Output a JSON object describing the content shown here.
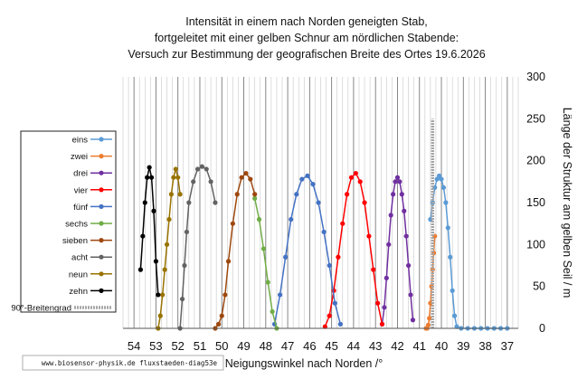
{
  "chart_data": {
    "type": "scatter",
    "title_lines": [
      "Intensität in einem nach Norden geneigten Stab,",
      "fortgeleitet mit einer gelben Schnur am nördlichen Stabende:",
      "Versuch zur Bestimmung der geografischen Breite des Ortes 19.6.2026"
    ],
    "xlabel": "Neigungswinkel nach Norden  /°",
    "ylabel": "Länge der Struktur am gelben Seil / m",
    "xlim": [
      36.5,
      54.5
    ],
    "x_reversed": true,
    "ylim": [
      0,
      300
    ],
    "x_ticks": [
      37,
      38,
      39,
      40,
      41,
      42,
      43,
      44,
      45,
      46,
      47,
      48,
      49,
      50,
      51,
      52,
      53,
      54
    ],
    "y_ticks": [
      0,
      50,
      100,
      150,
      200,
      250,
      300
    ],
    "grid": "vertical-minor",
    "legend_position": "left",
    "source_note": "www.biosensor-physik.de  fluxstaeden-diag53e",
    "series": [
      {
        "name": "eins",
        "color": "#5b9bd5",
        "marker": "circle",
        "line": true,
        "x": [
          37.0,
          37.3,
          37.6,
          37.9,
          38.2,
          38.5,
          38.8,
          39.1,
          39.3,
          39.4,
          39.5,
          39.6,
          39.7,
          39.8,
          39.9,
          40.0,
          40.1,
          40.2,
          40.3,
          40.4,
          40.5
        ],
        "y": [
          0,
          0,
          0,
          0,
          0,
          0,
          0,
          0,
          2,
          15,
          45,
          85,
          120,
          150,
          168,
          178,
          182,
          178,
          168,
          150,
          130
        ]
      },
      {
        "name": "zwei",
        "color": "#ed7d31",
        "marker": "circle",
        "line": true,
        "x": [
          40.3,
          40.35,
          40.4,
          40.45,
          40.5,
          40.55,
          40.6,
          40.65,
          40.7
        ],
        "y": [
          110,
          90,
          70,
          50,
          30,
          12,
          4,
          0,
          0
        ]
      },
      {
        "name": "drei",
        "color": "#7030a0",
        "marker": "circle",
        "line": true,
        "x": [
          41.3,
          41.4,
          41.5,
          41.6,
          41.7,
          41.8,
          41.9,
          42.0,
          42.1,
          42.2,
          42.3,
          42.4,
          42.5,
          42.6,
          42.7
        ],
        "y": [
          10,
          40,
          75,
          110,
          140,
          160,
          175,
          180,
          175,
          160,
          135,
          100,
          60,
          25,
          5
        ]
      },
      {
        "name": "vier",
        "color": "#ff0000",
        "marker": "circle",
        "line": true,
        "x": [
          42.7,
          42.9,
          43.1,
          43.3,
          43.5,
          43.7,
          43.9,
          44.1,
          44.3,
          44.5,
          44.7,
          44.9,
          45.1,
          45.3
        ],
        "y": [
          5,
          30,
          70,
          110,
          150,
          175,
          185,
          180,
          160,
          125,
          85,
          45,
          15,
          2
        ]
      },
      {
        "name": "fünf",
        "color": "#4472c4",
        "marker": "circle",
        "line": true,
        "x": [
          44.6,
          44.85,
          45.1,
          45.35,
          45.6,
          45.85,
          46.1,
          46.35,
          46.6,
          46.85,
          47.1,
          47.35,
          47.6
        ],
        "y": [
          5,
          30,
          75,
          115,
          150,
          172,
          182,
          178,
          160,
          130,
          85,
          40,
          5
        ]
      },
      {
        "name": "sechs",
        "color": "#70ad47",
        "marker": "circle",
        "line": true,
        "x": [
          47.5,
          47.7,
          47.9,
          48.1,
          48.3,
          48.5
        ],
        "y": [
          0,
          20,
          55,
          95,
          130,
          155
        ]
      },
      {
        "name": "sieben",
        "color": "#9e480e",
        "marker": "circle",
        "line": true,
        "x": [
          48.5,
          48.7,
          48.9,
          49.1,
          49.3,
          49.5,
          49.7,
          49.85,
          50.0,
          50.15,
          50.3
        ],
        "y": [
          160,
          178,
          185,
          180,
          160,
          125,
          80,
          40,
          15,
          5,
          0
        ]
      },
      {
        "name": "acht",
        "color": "#636363",
        "marker": "circle",
        "line": true,
        "x": [
          50.3,
          50.5,
          50.7,
          50.9,
          51.1,
          51.3,
          51.5,
          51.6,
          51.7,
          51.8,
          51.9
        ],
        "y": [
          150,
          175,
          190,
          193,
          190,
          175,
          150,
          115,
          75,
          35,
          0
        ]
      },
      {
        "name": "neun",
        "color": "#997300",
        "marker": "circle",
        "line": true,
        "x": [
          51.9,
          52.0,
          52.1,
          52.2,
          52.3,
          52.4,
          52.5,
          52.6,
          52.7,
          52.8,
          52.9
        ],
        "y": [
          160,
          180,
          190,
          180,
          160,
          130,
          100,
          70,
          40,
          15,
          0
        ]
      },
      {
        "name": "zehn",
        "color": "#000000",
        "marker": "circle",
        "line": true,
        "x": [
          52.9,
          53.0,
          53.1,
          53.2,
          53.3,
          53.4,
          53.5,
          53.6,
          53.7
        ],
        "y": [
          40,
          80,
          140,
          180,
          192,
          180,
          150,
          110,
          70
        ]
      },
      {
        "name": "90°-Breitengrad",
        "color": "#a6a6a6",
        "marker": "none",
        "line": true,
        "line_width": 3.5,
        "x": [
          40.4,
          40.4
        ],
        "y": [
          0,
          250
        ]
      }
    ]
  }
}
